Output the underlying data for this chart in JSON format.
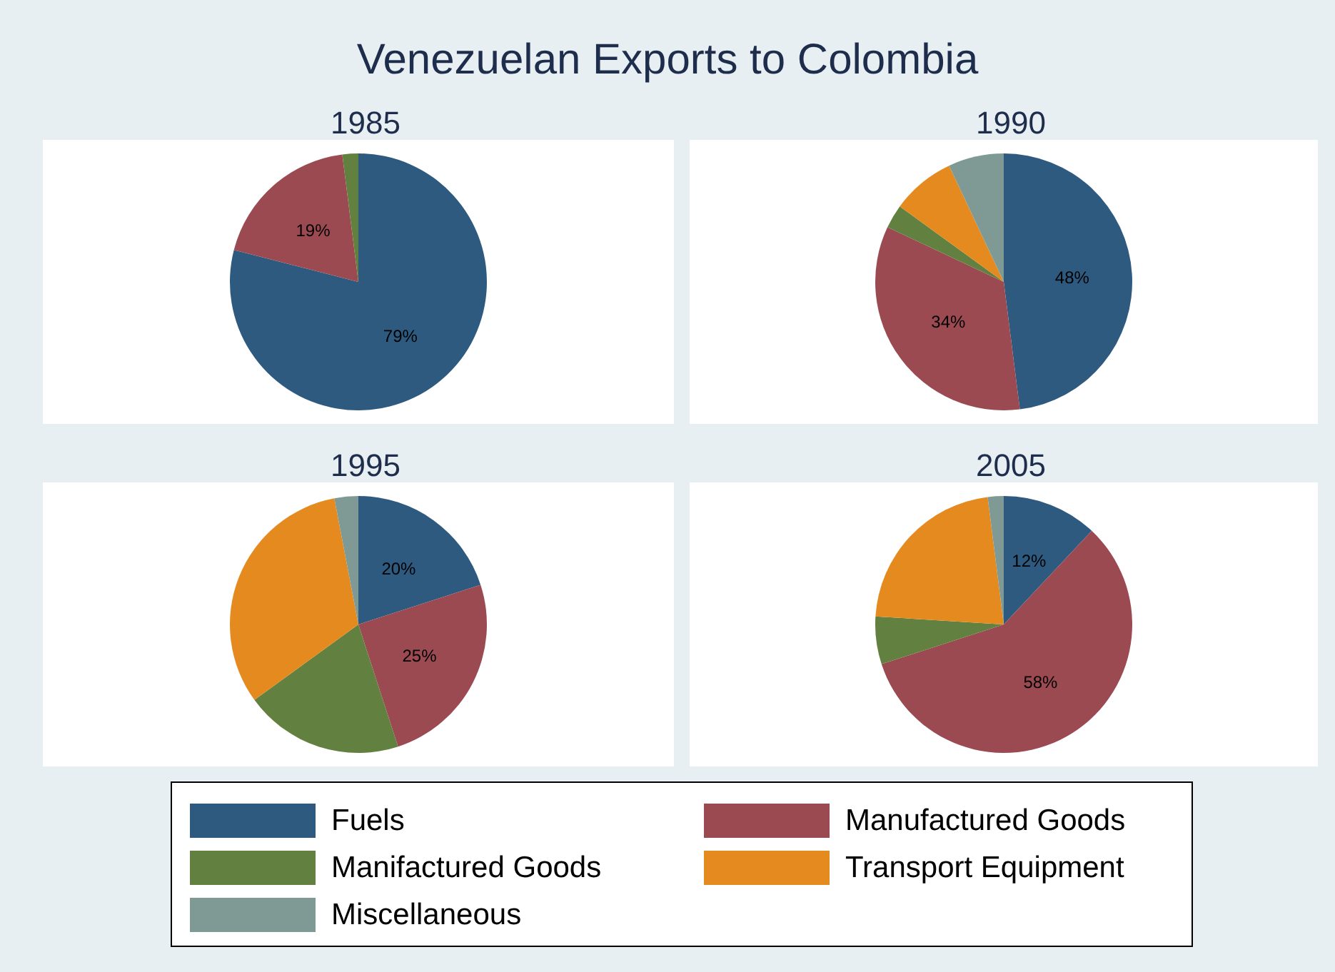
{
  "chart_data": [
    {
      "type": "pie",
      "title": "1985",
      "annotations": [
        "Venezuelan Exports to Colombia"
      ],
      "legend": "bottom",
      "categories": [
        "Fuels",
        "Manufactured Goods",
        "Manifactured Goods",
        "Transport Equipment",
        "Miscellaneous"
      ],
      "values": [
        79,
        19,
        2,
        0,
        0
      ],
      "colors": [
        "#2e5a80",
        "#9b4a52",
        "#62803f",
        "#e48a1f",
        "#7f9a94"
      ],
      "value_labels": [
        "79%",
        "19%",
        null,
        null,
        null
      ]
    },
    {
      "type": "pie",
      "title": "1990",
      "categories": [
        null,
        null,
        null,
        null,
        null
      ],
      "values": [
        48,
        34,
        3,
        8,
        7
      ],
      "colors": [
        "#2e5a80",
        "#9b4a52",
        "#62803f",
        "#e48a1f",
        "#7f9a94"
      ],
      "value_labels": [
        "48%",
        "34%",
        null,
        null,
        null
      ]
    },
    {
      "type": "pie",
      "title": "1995",
      "categories": [
        null,
        null,
        null,
        null,
        null
      ],
      "values": [
        20,
        25,
        20,
        32,
        3
      ],
      "colors": [
        "#2e5a80",
        "#9b4a52",
        "#62803f",
        "#e48a1f",
        "#7f9a94"
      ],
      "value_labels": [
        "20%",
        "25%",
        null,
        null,
        null
      ]
    },
    {
      "type": "pie",
      "title": "2005",
      "categories": [
        null,
        null,
        null,
        null,
        null
      ],
      "values": [
        12,
        58,
        6,
        22,
        2
      ],
      "colors": [
        "#2e5a80",
        "#9b4a52",
        "#62803f",
        "#e48a1f",
        "#7f9a94"
      ],
      "value_labels": [
        "12%",
        "58%",
        null,
        null,
        null
      ]
    }
  ]
}
